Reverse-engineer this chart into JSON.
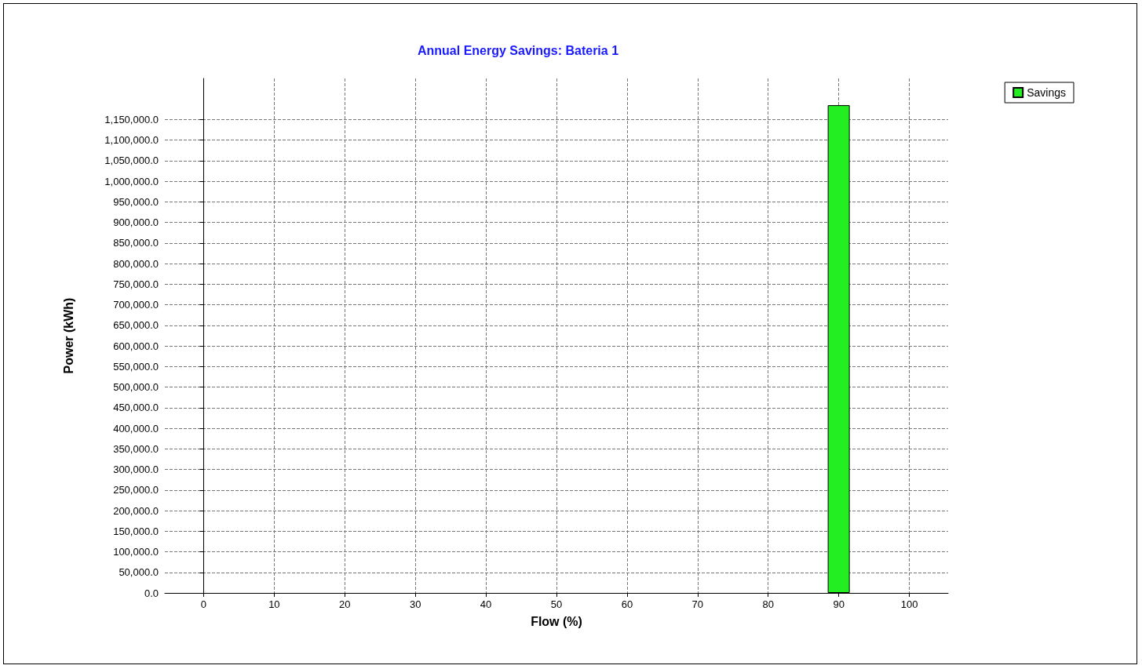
{
  "chart_data": {
    "type": "bar",
    "title": "Annual Energy Savings: Bateria 1",
    "xlabel": "Flow (%)",
    "ylabel": "Power (kWh)",
    "x": [
      90
    ],
    "series": [
      {
        "name": "Savings",
        "color": "#22ee22",
        "values": [
          1185000
        ]
      }
    ],
    "xlim": [
      -5.5,
      105.5
    ],
    "xticks": [
      0,
      10,
      20,
      30,
      40,
      50,
      60,
      70,
      80,
      90,
      100
    ],
    "ylim": [
      0,
      1250000
    ],
    "yticks": [
      {
        "value": 0,
        "label": "0.0"
      },
      {
        "value": 50000,
        "label": "50,000.0"
      },
      {
        "value": 100000,
        "label": "100,000.0"
      },
      {
        "value": 150000,
        "label": "150,000.0"
      },
      {
        "value": 200000,
        "label": "200,000.0"
      },
      {
        "value": 250000,
        "label": "250,000.0"
      },
      {
        "value": 300000,
        "label": "300,000.0"
      },
      {
        "value": 350000,
        "label": "350,000.0"
      },
      {
        "value": 400000,
        "label": "400,000.0"
      },
      {
        "value": 450000,
        "label": "450,000.0"
      },
      {
        "value": 500000,
        "label": "500,000.0"
      },
      {
        "value": 550000,
        "label": "550,000.0"
      },
      {
        "value": 600000,
        "label": "600,000.0"
      },
      {
        "value": 650000,
        "label": "650,000.0"
      },
      {
        "value": 700000,
        "label": "700,000.0"
      },
      {
        "value": 750000,
        "label": "750,000.0"
      },
      {
        "value": 800000,
        "label": "800,000.0"
      },
      {
        "value": 850000,
        "label": "850,000.0"
      },
      {
        "value": 900000,
        "label": "900,000.0"
      },
      {
        "value": 950000,
        "label": "950,000.0"
      },
      {
        "value": 1000000,
        "label": "1,000,000.0"
      },
      {
        "value": 1050000,
        "label": "1,050,000.0"
      },
      {
        "value": 1100000,
        "label": "1,100,000.0"
      },
      {
        "value": 1150000,
        "label": "1,150,000.0"
      }
    ],
    "grid": true,
    "legend": "top right"
  }
}
